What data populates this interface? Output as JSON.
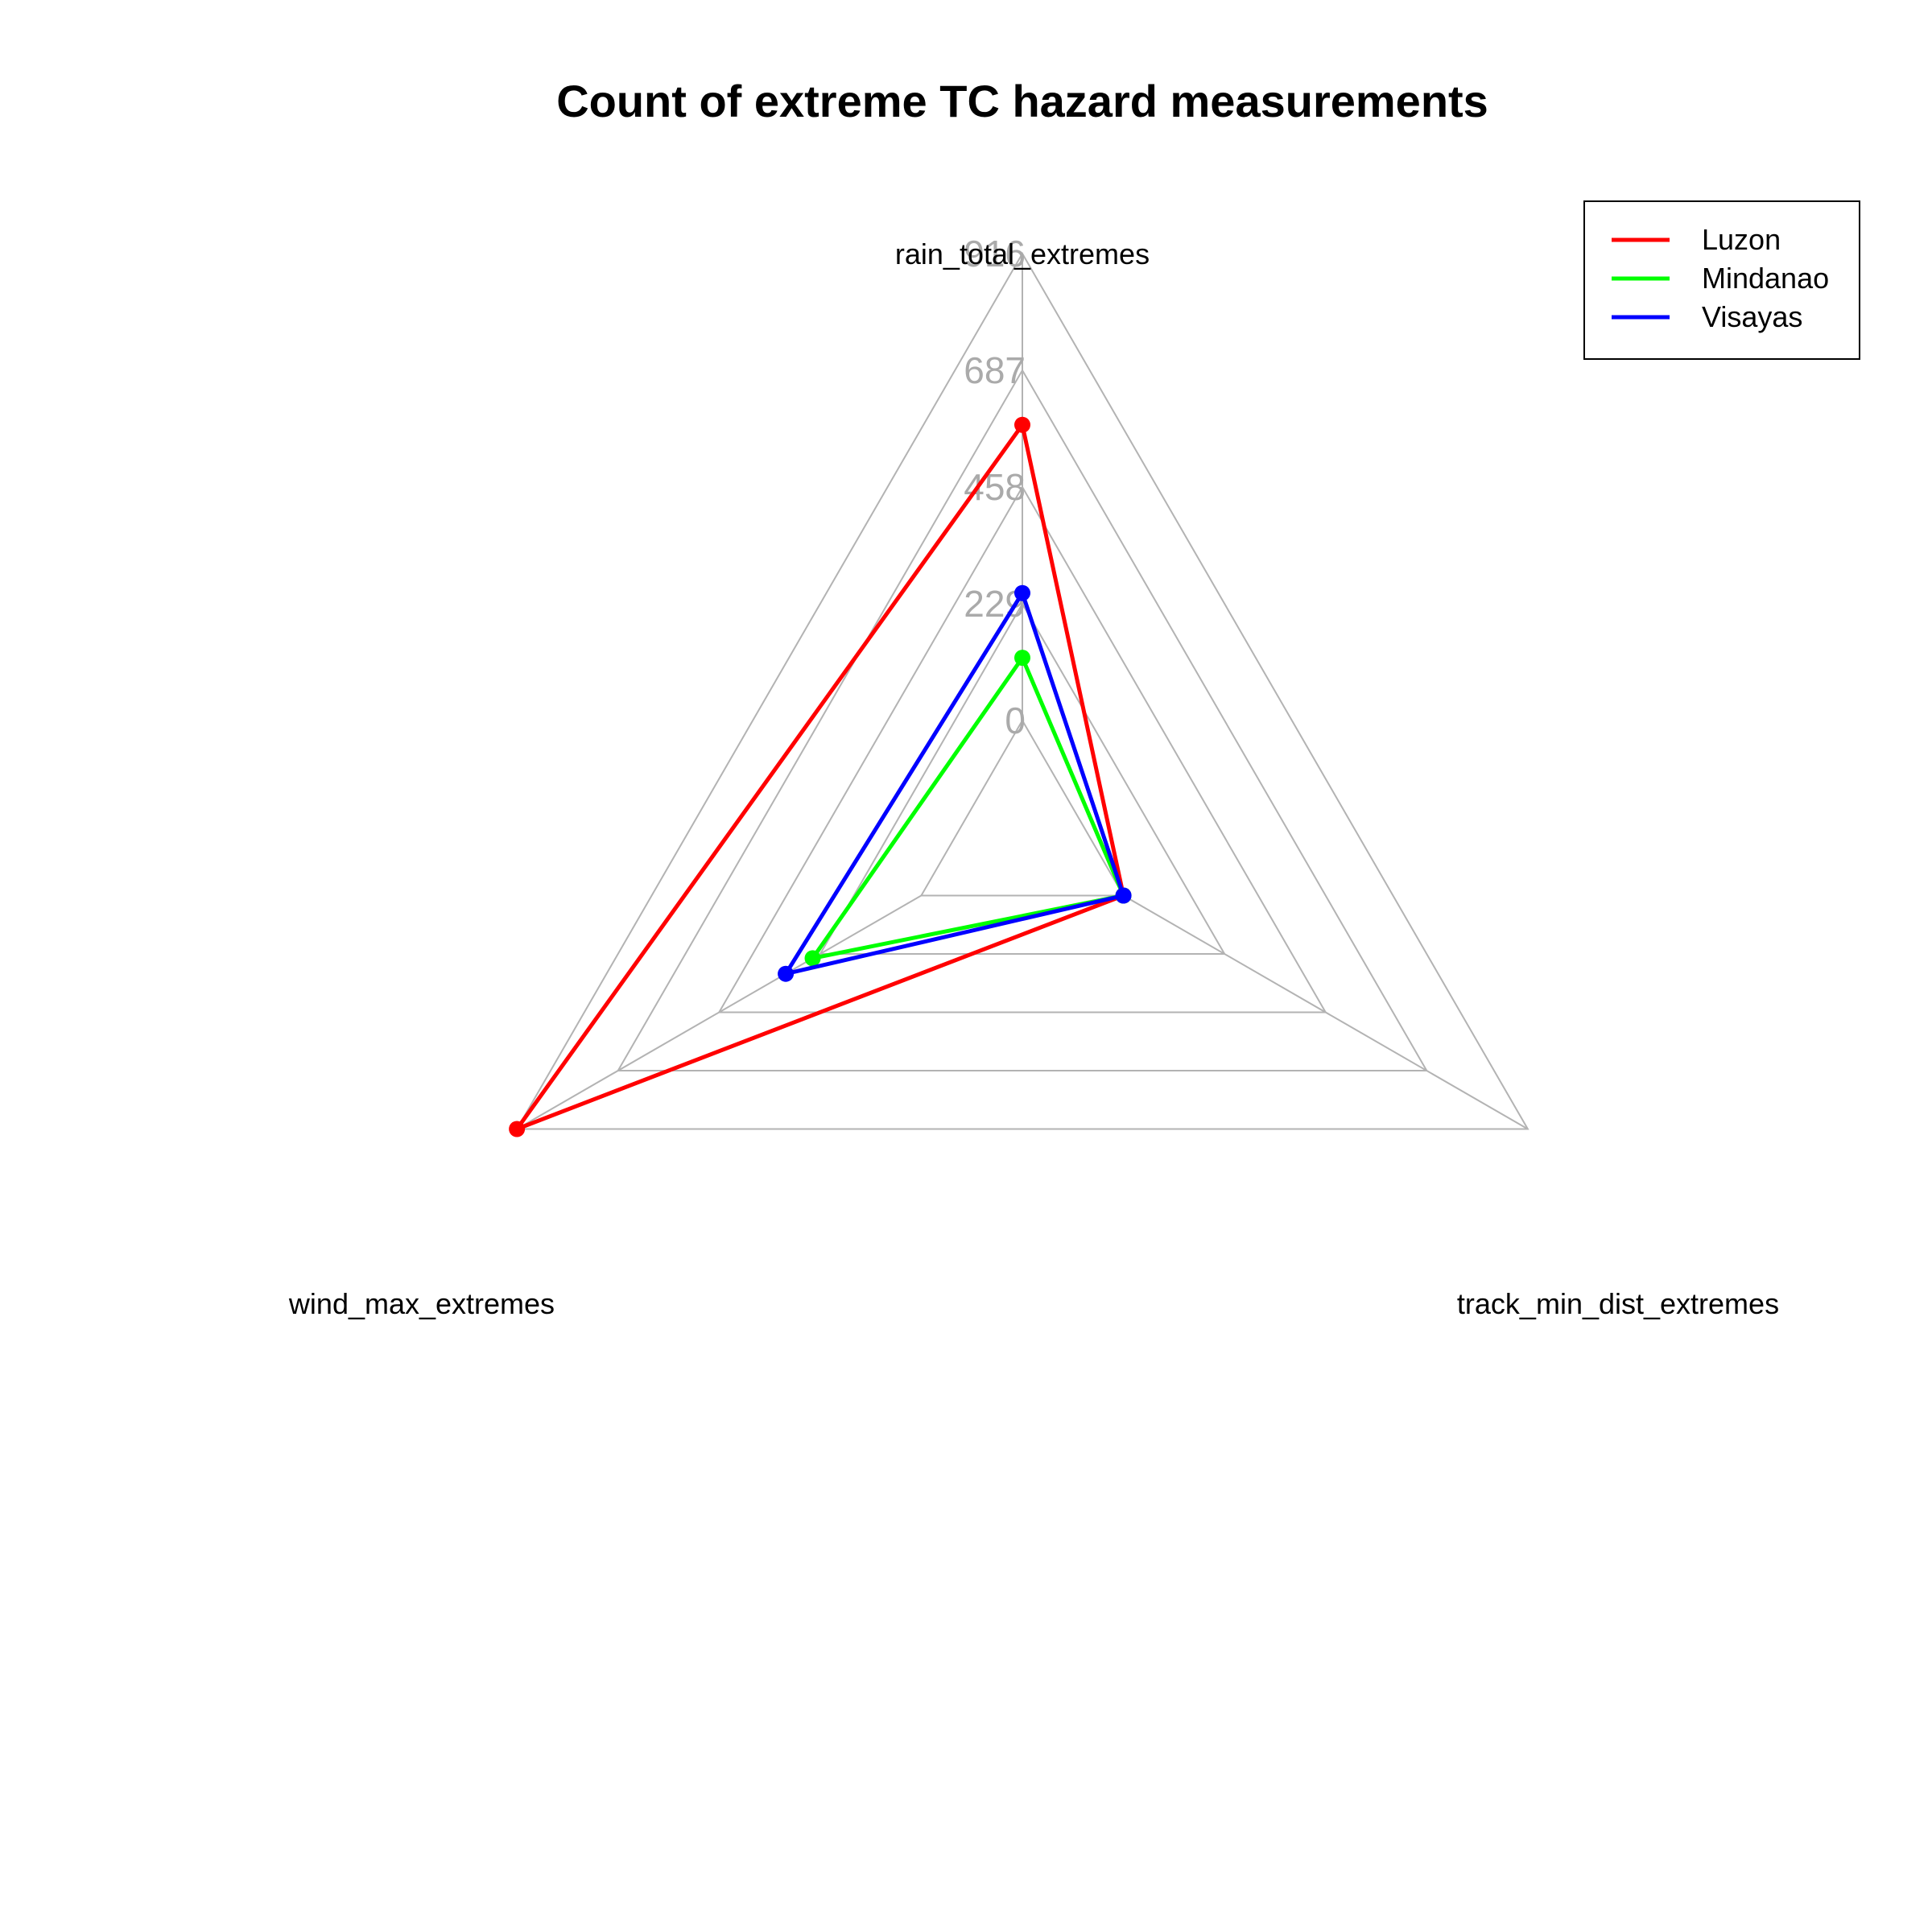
{
  "chart_data": {
    "type": "radar",
    "title": "Count of extreme TC hazard measurements",
    "axes": [
      "rain_total_extremes",
      "track_min_dist_extremes",
      "wind_max_extremes"
    ],
    "ticks": [
      0,
      229,
      458,
      687,
      916
    ],
    "range": [
      0,
      916
    ],
    "grid": true,
    "legend_position": "top-right",
    "series": [
      {
        "name": "Luzon",
        "color": "#ff0000",
        "values": [
          580,
          0,
          916
        ]
      },
      {
        "name": "Mindanao",
        "color": "#00ff00",
        "values": [
          123,
          0,
          246
        ]
      },
      {
        "name": "Visayas",
        "color": "#0000ff",
        "values": [
          250,
          0,
          307
        ]
      }
    ]
  }
}
